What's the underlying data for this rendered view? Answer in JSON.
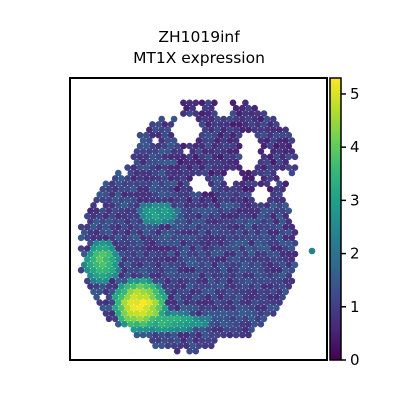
{
  "chart_data": {
    "type": "heatmap",
    "plot_kind": "spatial hexagonal spot scatter",
    "title": [
      "ZH1019inf",
      "MT1X expression"
    ],
    "xlabel": "",
    "ylabel": "",
    "axis_ticks": false,
    "colormap": "viridis",
    "colorbar": {
      "range": [
        0,
        5.3
      ],
      "ticks": [
        0,
        1,
        2,
        3,
        4,
        5
      ],
      "tick_labels": [
        "0",
        "1",
        "2",
        "3",
        "4",
        "5"
      ]
    },
    "expression_summary": {
      "background": 1.1,
      "upper_right_region": 0.4,
      "lower_left_edge_hotspot": 5.2,
      "left_center_patch": 3.0
    },
    "colors": {
      "viridis_stops": [
        "#440154",
        "#482878",
        "#3e4989",
        "#31688e",
        "#26828e",
        "#1f9e89",
        "#35b779",
        "#6ece58",
        "#b5de2b",
        "#fde725"
      ]
    }
  }
}
